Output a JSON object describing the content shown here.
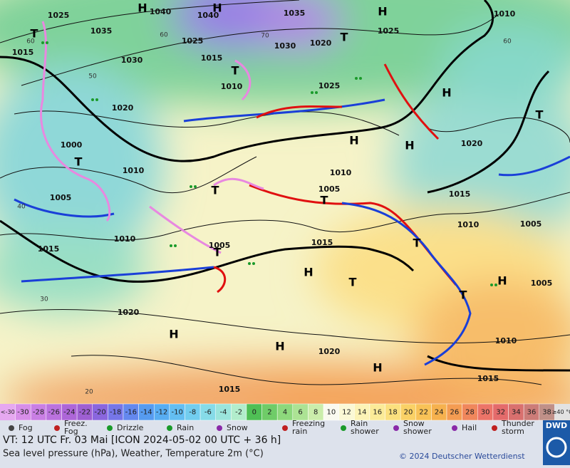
{
  "map": {
    "pressure_labels": [
      1025,
      1040,
      1040,
      1035,
      1010,
      1035,
      1025,
      1030,
      1020,
      1025,
      1015,
      1030,
      1015,
      1010,
      1025,
      1020,
      1000,
      1010,
      1020,
      1010,
      1005,
      1005,
      1015,
      1010,
      1005,
      1015,
      1010,
      1005,
      1015,
      1005,
      1020,
      1010,
      1020,
      1015,
      1015
    ],
    "centers": [
      "H",
      "H",
      "H",
      "T",
      "T",
      "T",
      "H",
      "T",
      "H",
      "H",
      "T",
      "T",
      "T",
      "T",
      "H",
      "T",
      "H",
      "T",
      "H",
      "H",
      "H",
      "T"
    ],
    "grid_labels": [
      60,
      50,
      40,
      30,
      20,
      60,
      70,
      60
    ]
  },
  "legend": {
    "scale": {
      "low": "<-30",
      "high": "≥40 °C",
      "values": [
        -30,
        -28,
        -26,
        -24,
        -22,
        -20,
        -18,
        -16,
        -14,
        -12,
        -10,
        -8,
        -6,
        -4,
        -2,
        0,
        2,
        4,
        6,
        8,
        10,
        12,
        14,
        16,
        18,
        20,
        22,
        24,
        26,
        28,
        30,
        32,
        34,
        36,
        38
      ],
      "colors": [
        "#d78ee8",
        "#c97fe4",
        "#bb72de",
        "#ad66d8",
        "#9e5fd2",
        "#8a66de",
        "#7676e8",
        "#6488ee",
        "#569bf0",
        "#58adf2",
        "#63bef2",
        "#72cdef",
        "#86dbe8",
        "#9be5dc",
        "#b2edcc",
        "#4fbf55",
        "#6fcc68",
        "#8dd87c",
        "#acE394",
        "#cbedab",
        "#fafaf0",
        "#fbf9d6",
        "#fcf3b6",
        "#fbeb98",
        "#fbe07e",
        "#fad166",
        "#f8c257",
        "#f6b14e",
        "#f49c52",
        "#f0875c",
        "#ec7468",
        "#e46b6b",
        "#d9706e",
        "#cc7c78",
        "#c09088"
      ],
      "low_color": "#e6a8f0",
      "high_color": "#e2e2e2"
    },
    "symbols": [
      "Fog",
      "Freez.\nFog",
      "Drizzle",
      "Rain",
      "Snow",
      "Freezing\nrain",
      "Rain\nshower",
      "Snow\nshower",
      "Hail",
      "Thunder\nstorm"
    ]
  },
  "footer": {
    "valid": "VT: 12 UTC Fr.  03 Mai [ICON 2024-05-02  00 UTC + 36 h]",
    "description": "Sea level pressure (hPa), Weather, Temperature 2m (°C)",
    "copyright": "© 2024 Deutscher Wetterdienst",
    "logo": "DWD"
  }
}
